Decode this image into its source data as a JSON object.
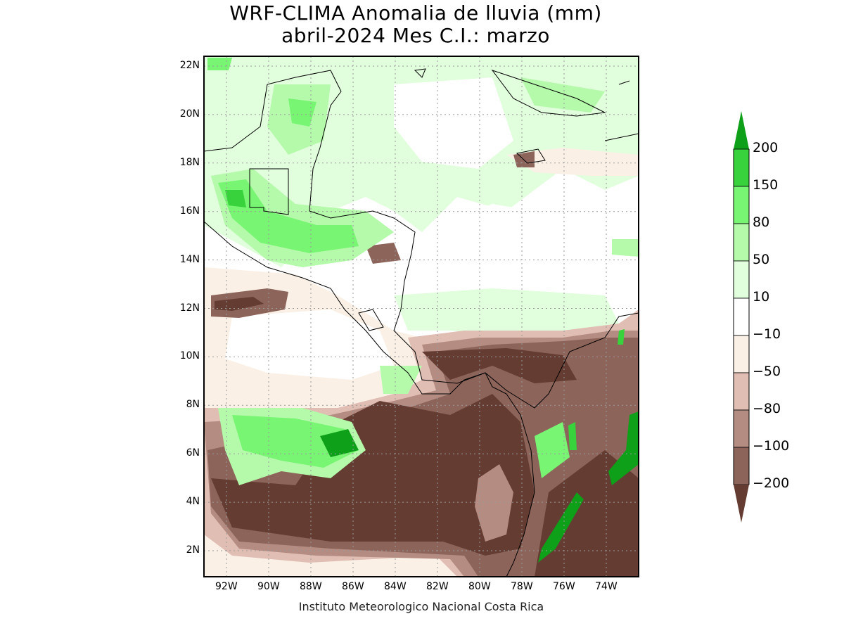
{
  "title_line1": "WRF-CLIMA Anomalia de lluvia (mm)",
  "title_line2": "abril-2024 Mes C.I.: marzo",
  "credit": "Instituto Meteorologico Nacional Costa Rica",
  "lat_labels": [
    "22N",
    "20N",
    "18N",
    "16N",
    "14N",
    "12N",
    "10N",
    "8N",
    "6N",
    "4N",
    "2N"
  ],
  "lon_labels": [
    "92W",
    "90W",
    "88W",
    "86W",
    "84W",
    "82W",
    "80W",
    "78W",
    "76W",
    "74W"
  ],
  "colorbar": {
    "levels": [
      "200",
      "150",
      "80",
      "50",
      "10",
      "−10",
      "−50",
      "−80",
      "−100",
      "−200"
    ],
    "colors": [
      "#0fa01a",
      "#37d23c",
      "#78f573",
      "#b4faaa",
      "#e1ffdc",
      "#ffffff",
      "#faf0e6",
      "#e1beb4",
      "#b48c82",
      "#8c645a",
      "#643c32"
    ]
  }
}
